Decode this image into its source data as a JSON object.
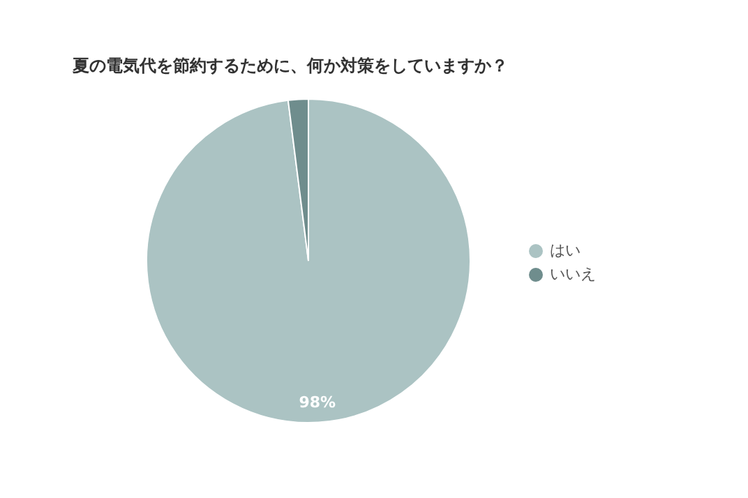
{
  "chart_data": {
    "type": "pie",
    "title": "夏の電気代を節約するために、何か対策をしていますか？",
    "categories": [
      "はい",
      "いいえ"
    ],
    "values": [
      98,
      2
    ],
    "colors": [
      "#abc3c3",
      "#6f8d8d"
    ],
    "value_labels": [
      "98%",
      null
    ],
    "legend": "right"
  }
}
